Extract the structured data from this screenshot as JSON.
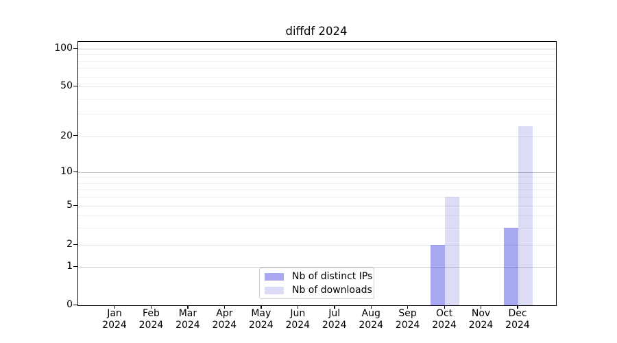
{
  "chart": {
    "title": "diffdf 2024"
  },
  "chart_data": {
    "type": "bar",
    "title": "diffdf 2024",
    "categories": [
      "Jan 2024",
      "Feb 2024",
      "Mar 2024",
      "Apr 2024",
      "May 2024",
      "Jun 2024",
      "Jul 2024",
      "Aug 2024",
      "Sep 2024",
      "Oct 2024",
      "Nov 2024",
      "Dec 2024"
    ],
    "series": [
      {
        "name": "Nb of distinct IPs",
        "color": "#a9a9f3",
        "values": [
          0,
          0,
          0,
          0,
          0,
          0,
          0,
          0,
          0,
          2,
          0,
          3
        ]
      },
      {
        "name": "Nb of downloads",
        "color": "#dcdcf6",
        "values": [
          0,
          0,
          0,
          0,
          0,
          0,
          0,
          0,
          0,
          6,
          0,
          24
        ]
      }
    ],
    "yscale": "symlog",
    "y_ticks": [
      0,
      1,
      2,
      5,
      10,
      20,
      50,
      100
    ],
    "y_decade_ticks": [
      1,
      10,
      100
    ],
    "y_minor_gridlines": [
      3,
      4,
      6,
      7,
      8,
      9,
      30,
      40,
      60,
      70,
      80,
      90
    ],
    "ylim": [
      0,
      110
    ],
    "grid": true,
    "legend_position": "lower center",
    "xlabel": "",
    "ylabel": ""
  }
}
